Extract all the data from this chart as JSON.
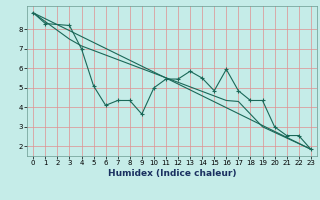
{
  "xlabel": "Humidex (Indice chaleur)",
  "bg_color": "#c5ece8",
  "plot_bg_color": "#c5ece8",
  "bottom_bar_color": "#4a7a70",
  "grid_color": "#e09090",
  "line_color": "#1a6858",
  "xlim": [
    -0.5,
    23.5
  ],
  "ylim": [
    1.5,
    9.2
  ],
  "xticks": [
    0,
    1,
    2,
    3,
    4,
    5,
    6,
    7,
    8,
    9,
    10,
    11,
    12,
    13,
    14,
    15,
    16,
    17,
    18,
    19,
    20,
    21,
    22,
    23
  ],
  "yticks": [
    2,
    3,
    4,
    5,
    6,
    7,
    8
  ],
  "series1_x": [
    0,
    1,
    3,
    4,
    5,
    6,
    7,
    8,
    9,
    10,
    11,
    12,
    13,
    14,
    15,
    16,
    17,
    18,
    19,
    20,
    21,
    22,
    23
  ],
  "series1_y": [
    8.85,
    8.3,
    8.2,
    7.0,
    5.1,
    4.1,
    4.35,
    4.35,
    3.65,
    5.0,
    5.45,
    5.45,
    5.85,
    5.5,
    4.85,
    5.95,
    4.85,
    4.35,
    4.35,
    3.0,
    2.55,
    2.55,
    1.85
  ],
  "series2_x": [
    0,
    23
  ],
  "series2_y": [
    8.85,
    1.85
  ],
  "series3_x": [
    0,
    3,
    4,
    16,
    17,
    19,
    23
  ],
  "series3_y": [
    8.85,
    7.5,
    7.15,
    4.35,
    4.3,
    3.0,
    1.85
  ]
}
